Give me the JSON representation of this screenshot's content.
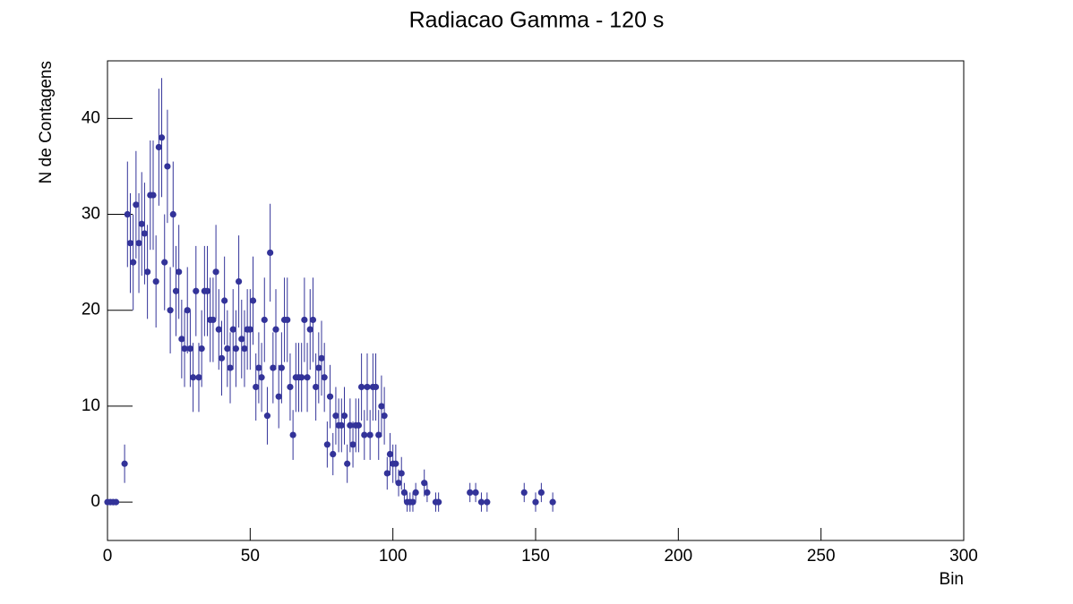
{
  "chart_data": {
    "type": "scatter",
    "title": "Radiacao Gamma - 120 s",
    "xlabel": "Bin",
    "ylabel": "N de Contagens",
    "color": "#333399",
    "xlim": [
      0,
      300
    ],
    "xticks": [
      0,
      50,
      100,
      150,
      200,
      250,
      300
    ],
    "ylim": [
      -4,
      46
    ],
    "yticks": [
      0,
      10,
      20,
      30,
      40
    ],
    "x": [
      0,
      1,
      2,
      3,
      6,
      7,
      8,
      9,
      10,
      11,
      12,
      13,
      14,
      15,
      16,
      17,
      18,
      19,
      20,
      21,
      22,
      23,
      24,
      25,
      26,
      27,
      28,
      29,
      30,
      31,
      32,
      33,
      34,
      35,
      36,
      37,
      38,
      39,
      40,
      41,
      42,
      43,
      44,
      45,
      46,
      47,
      48,
      49,
      50,
      51,
      52,
      53,
      54,
      55,
      56,
      57,
      58,
      59,
      60,
      61,
      62,
      63,
      64,
      65,
      66,
      67,
      68,
      69,
      70,
      71,
      72,
      73,
      74,
      75,
      76,
      77,
      78,
      79,
      80,
      81,
      82,
      83,
      84,
      85,
      86,
      87,
      88,
      89,
      90,
      91,
      92,
      93,
      94,
      95,
      96,
      97,
      98,
      99,
      100,
      101,
      102,
      103,
      104,
      105,
      106,
      107,
      108,
      111,
      112,
      115,
      116,
      127,
      129,
      131,
      133,
      146,
      150,
      152,
      156
    ],
    "values": [
      0,
      0,
      0,
      0,
      4,
      30,
      27,
      25,
      31,
      27,
      29,
      28,
      24,
      32,
      32,
      23,
      37,
      38,
      25,
      35,
      20,
      30,
      22,
      24,
      17,
      16,
      20,
      16,
      13,
      22,
      13,
      16,
      22,
      22,
      19,
      19,
      24,
      18,
      15,
      21,
      16,
      14,
      18,
      16,
      23,
      17,
      16,
      18,
      18,
      21,
      12,
      14,
      13,
      19,
      9,
      26,
      14,
      18,
      11,
      14,
      19,
      19,
      12,
      7,
      13,
      13,
      13,
      19,
      13,
      18,
      19,
      12,
      14,
      15,
      13,
      6,
      11,
      5,
      9,
      8,
      8,
      9,
      4,
      8,
      6,
      8,
      8,
      12,
      7,
      12,
      7,
      12,
      12,
      7,
      10,
      9,
      3,
      5,
      4,
      4,
      2,
      3,
      1,
      0,
      0,
      0,
      1,
      2,
      1,
      0,
      0,
      1,
      1,
      0,
      0,
      1,
      0,
      1,
      0
    ],
    "errors": [
      0,
      0,
      0,
      0,
      2,
      5.5,
      5.2,
      5,
      5.6,
      5.2,
      5.4,
      5.3,
      4.9,
      5.7,
      5.7,
      4.8,
      6.1,
      6.2,
      5,
      5.9,
      4.5,
      5.5,
      4.7,
      4.9,
      4.1,
      4,
      4.5,
      4,
      3.6,
      4.7,
      3.6,
      4,
      4.7,
      4.7,
      4.4,
      4.4,
      4.9,
      4.2,
      3.9,
      4.6,
      4,
      3.7,
      4.2,
      4,
      4.8,
      4.1,
      4,
      4.2,
      4.2,
      4.6,
      3.5,
      3.7,
      3.6,
      4.4,
      3,
      5.1,
      3.7,
      4.2,
      3.3,
      3.7,
      4.4,
      4.4,
      3.5,
      2.6,
      3.6,
      3.6,
      3.6,
      4.4,
      3.6,
      4.2,
      4.4,
      3.5,
      3.7,
      3.9,
      3.6,
      2.4,
      3.3,
      2.2,
      3,
      2.8,
      2.8,
      3,
      2,
      2.8,
      2.4,
      2.8,
      2.8,
      3.5,
      2.6,
      3.5,
      2.6,
      3.5,
      3.5,
      2.6,
      3.2,
      3,
      1.7,
      2.2,
      2,
      2,
      1.4,
      1.7,
      1,
      1,
      1,
      1,
      1,
      1.4,
      1,
      1,
      1,
      1,
      1,
      1,
      1,
      1,
      1,
      1,
      1
    ]
  }
}
